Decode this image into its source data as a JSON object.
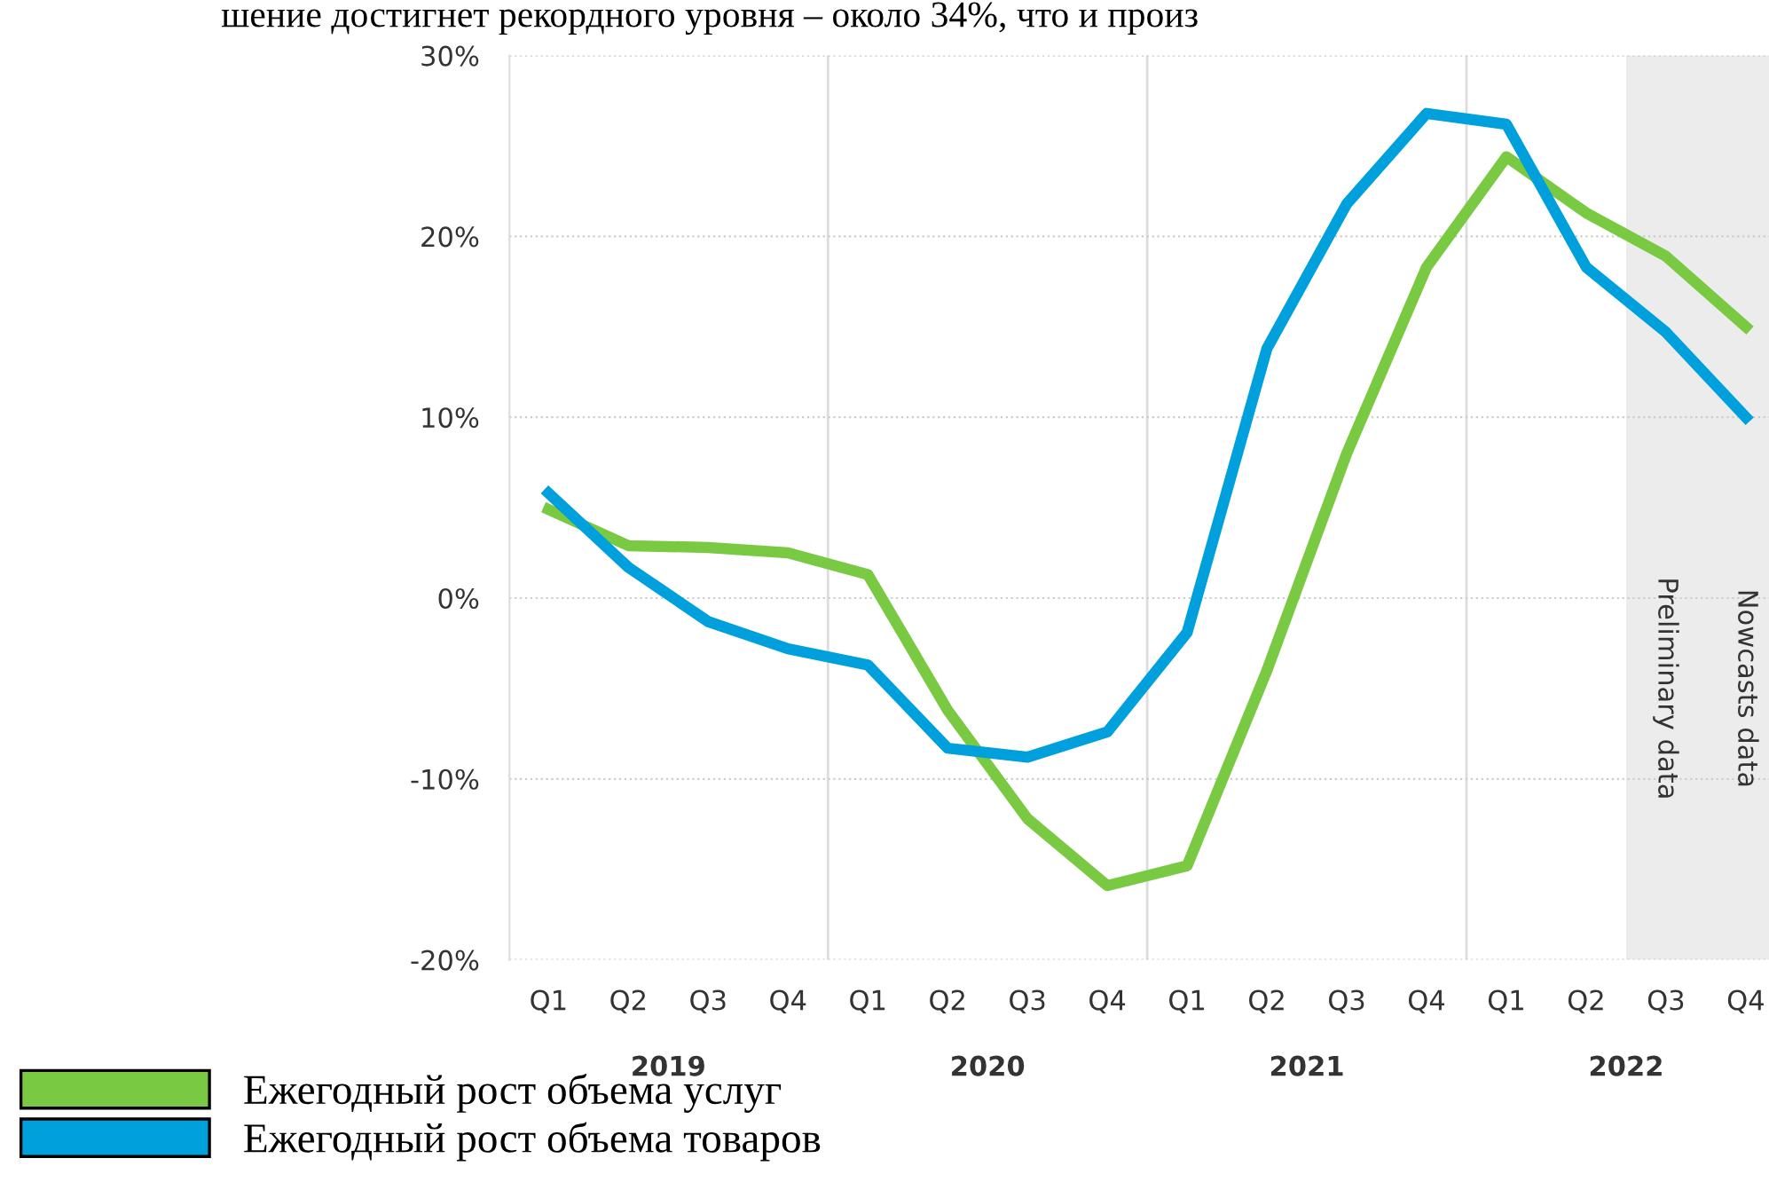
{
  "chart_data": {
    "type": "line",
    "categories": [
      "Q1",
      "Q2",
      "Q3",
      "Q4",
      "Q1",
      "Q2",
      "Q3",
      "Q4",
      "Q1",
      "Q2",
      "Q3",
      "Q4",
      "Q1",
      "Q2",
      "Q3",
      "Q4"
    ],
    "series": [
      {
        "name": "Ежегодный рост объема услуг",
        "color": "#7ac943",
        "values": [
          4.9,
          2.9,
          2.8,
          2.5,
          1.3,
          -6.2,
          -12.2,
          -15.9,
          -14.8,
          -4.0,
          8.0,
          18.3,
          24.4,
          21.3,
          18.9,
          15.0
        ]
      },
      {
        "name": "Ежегодный рост объема товаров",
        "color": "#00a0dc",
        "values": [
          5.8,
          1.7,
          -1.3,
          -2.8,
          -3.7,
          -8.3,
          -8.8,
          -7.4,
          -1.9,
          13.8,
          21.8,
          26.8,
          26.2,
          18.3,
          14.7,
          10.0
        ]
      }
    ],
    "ylim": [
      -20,
      30
    ],
    "yticks": [
      {
        "value": -20,
        "label": "-20%"
      },
      {
        "value": -10,
        "label": "-10%"
      },
      {
        "value": 0,
        "label": "0%"
      },
      {
        "value": 10,
        "label": "10%"
      },
      {
        "value": 20,
        "label": "20%"
      },
      {
        "value": 30,
        "label": "30%"
      }
    ],
    "grid": "y",
    "legend": "bottom left",
    "marker": "none",
    "line_style": "solid",
    "annotations": [
      "шение достигнет рекордного уровня – около 34%, что и произ",
      "2019",
      "2020",
      "2021",
      "2022",
      "Preliminary data",
      "Nowcasts data"
    ]
  }
}
